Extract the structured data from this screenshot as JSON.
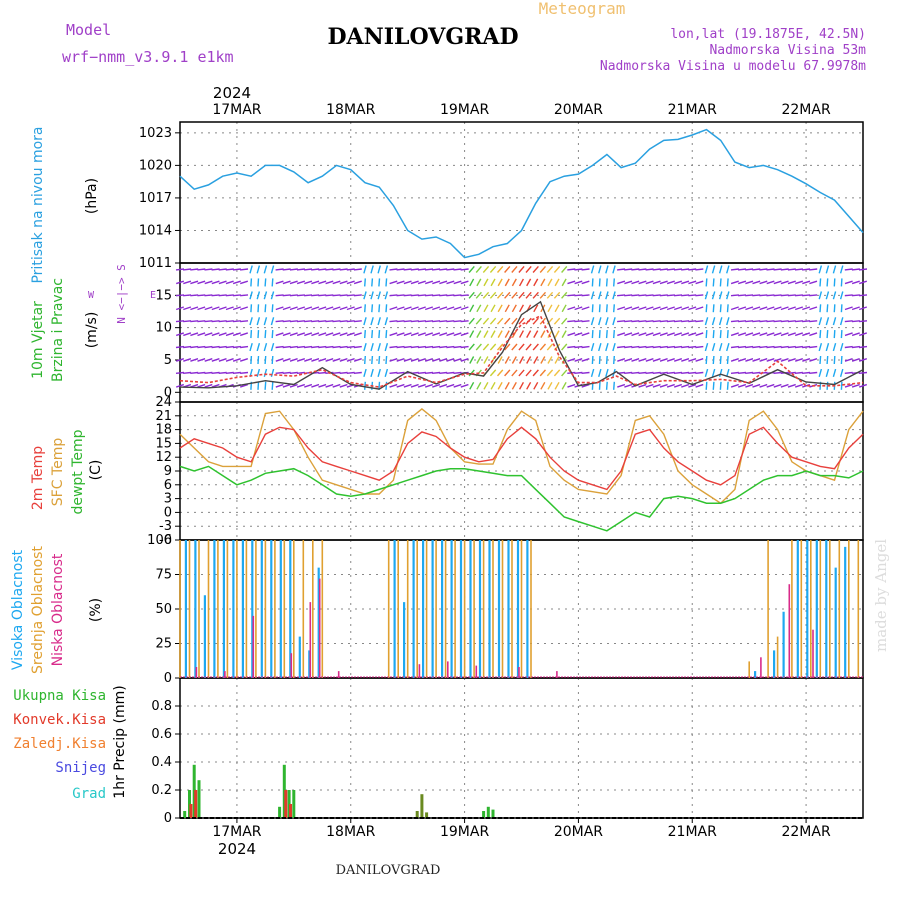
{
  "header": {
    "model_label": "Model",
    "model_name": "wrf−nmm_v3.9.1 e1km",
    "title": "DANILOVGRAD",
    "meteogram_label": "Meteogram",
    "lonlat": "lon,lat (19.1875E, 42.5N)",
    "elevation": "Nadmorska Visina 53m",
    "model_elevation": "Nadmorska Visina u modelu 67.9978m",
    "year": "2024",
    "footer_title": "DANILOVGRAD",
    "watermark": "made by Angel"
  },
  "colors": {
    "pressure": "#2aa0e0",
    "temp2m": "#e8403c",
    "sfc_temp": "#dba13a",
    "dewpoint": "#2fc22f",
    "high_cloud": "#1ea8f0",
    "mid_cloud": "#e0a030",
    "low_cloud": "#d82a8a",
    "precip_total": "#2fb52f",
    "precip_conv": "#e23a2a",
    "precip_frozen": "#f08030",
    "snow": "#4a4ae0",
    "grad": "#28c8c8",
    "wind_main": "#8a2ad2",
    "wind_speed": "#444444",
    "gust": "#e8403c"
  },
  "chart_data": [
    {
      "type": "line",
      "panel": "pressure",
      "ylabel_parts": [
        "Pritisak na nivou mora"
      ],
      "unit": "(hPa)",
      "ylim": [
        1011,
        1024
      ],
      "yticks": [
        1011,
        1014,
        1017,
        1020,
        1023
      ],
      "xlim": [
        0,
        144
      ],
      "dates": [
        "17MAR",
        "18MAR",
        "19MAR",
        "20MAR",
        "21MAR",
        "22MAR"
      ],
      "date_hours": [
        12,
        36,
        60,
        84,
        108,
        132
      ],
      "series": [
        {
          "x": [
            0,
            3,
            6,
            9,
            12,
            15,
            18,
            21,
            24,
            27,
            30,
            33,
            36,
            39,
            42,
            45,
            48,
            51,
            54,
            57,
            60,
            63,
            66,
            69,
            72,
            75,
            78,
            81,
            84,
            87,
            90,
            93,
            96,
            99,
            102,
            105,
            108,
            111,
            114,
            117,
            120,
            123,
            126,
            129,
            132,
            135,
            138,
            141,
            144
          ],
          "y": [
            1019.0,
            1017.8,
            1018.2,
            1019.0,
            1019.3,
            1019.0,
            1020.0,
            1020.0,
            1019.4,
            1018.4,
            1019.0,
            1020.0,
            1019.6,
            1018.4,
            1018.0,
            1016.3,
            1014.0,
            1013.2,
            1013.4,
            1012.8,
            1011.5,
            1011.8,
            1012.5,
            1012.8,
            1014.0,
            1016.5,
            1018.5,
            1019.0,
            1019.2,
            1020.0,
            1021.0,
            1019.8,
            1020.2,
            1021.5,
            1022.3,
            1022.4,
            1022.8,
            1023.3,
            1022.3,
            1020.3,
            1019.8,
            1020.0,
            1019.6,
            1019.0,
            1018.3,
            1017.5,
            1016.8,
            1015.3,
            1013.8
          ]
        }
      ]
    },
    {
      "type": "line",
      "panel": "wind",
      "ylabel_parts": [
        "10m Vjetar",
        "Brzina i Pravac"
      ],
      "unit": "(m/s)",
      "compass": "N <−|−> S",
      "compass_we": [
        "W",
        "E"
      ],
      "ylim": [
        -1.5,
        20
      ],
      "yticks": [
        0,
        5,
        10,
        15
      ],
      "xlim": [
        0,
        144
      ],
      "series": [
        {
          "name": "speed",
          "x": [
            0,
            6,
            12,
            18,
            24,
            30,
            36,
            42,
            48,
            54,
            60,
            64,
            68,
            72,
            76,
            80,
            84,
            88,
            92,
            96,
            102,
            108,
            114,
            120,
            126,
            132,
            138,
            144
          ],
          "y": [
            0.8,
            0.7,
            1.0,
            1.8,
            1.2,
            3.8,
            1.2,
            0.5,
            3.2,
            1.3,
            3.0,
            2.5,
            6.2,
            12.0,
            14.0,
            6.5,
            1.0,
            1.5,
            3.2,
            1.0,
            2.8,
            1.2,
            2.8,
            1.4,
            3.5,
            1.6,
            1.2,
            3.5
          ]
        },
        {
          "name": "gust",
          "x": [
            0,
            6,
            12,
            18,
            24,
            30,
            36,
            42,
            48,
            54,
            60,
            64,
            68,
            72,
            76,
            80,
            84,
            88,
            92,
            96,
            102,
            108,
            114,
            120,
            126,
            132,
            138,
            144
          ],
          "y": [
            1.8,
            1.5,
            2.3,
            2.8,
            2.5,
            3.5,
            1.5,
            0.8,
            2.5,
            1.5,
            2.8,
            3.0,
            7.0,
            10.5,
            11.8,
            5.5,
            1.5,
            1.5,
            2.5,
            1.2,
            1.8,
            1.8,
            2.0,
            1.5,
            4.8,
            1.0,
            1.0,
            1.5
          ]
        }
      ]
    },
    {
      "type": "line",
      "panel": "temperature",
      "ylabel_parts": [
        "2m Temp",
        "SFC Temp",
        "dewpt Temp"
      ],
      "unit": "(C)",
      "ylim": [
        -6,
        24
      ],
      "yticks": [
        -6,
        -3,
        0,
        3,
        6,
        9,
        12,
        15,
        18,
        21,
        24
      ],
      "xlim": [
        0,
        144
      ],
      "series": [
        {
          "name": "2m Temp",
          "x": [
            0,
            3,
            6,
            9,
            12,
            15,
            18,
            21,
            24,
            27,
            30,
            33,
            36,
            39,
            42,
            45,
            48,
            51,
            54,
            57,
            60,
            63,
            66,
            69,
            72,
            75,
            78,
            81,
            84,
            87,
            90,
            93,
            96,
            99,
            102,
            105,
            108,
            111,
            114,
            117,
            120,
            123,
            126,
            129,
            132,
            135,
            138,
            141,
            144
          ],
          "y": [
            14,
            16,
            15,
            14,
            12,
            11,
            17,
            18.5,
            18,
            14,
            11,
            10,
            9,
            8,
            7,
            9,
            15,
            17.5,
            16.5,
            14,
            12,
            11,
            11.5,
            16,
            18.5,
            16,
            12,
            9,
            7,
            6,
            5,
            9,
            17,
            18,
            14,
            11,
            9,
            7,
            6,
            8,
            17,
            18.5,
            15,
            12,
            11,
            10,
            9.5,
            14,
            17
          ]
        },
        {
          "name": "SFC Temp",
          "x": [
            0,
            3,
            6,
            9,
            12,
            15,
            18,
            21,
            24,
            27,
            30,
            33,
            36,
            39,
            42,
            45,
            48,
            51,
            54,
            57,
            60,
            63,
            66,
            69,
            72,
            75,
            78,
            81,
            84,
            87,
            90,
            93,
            96,
            99,
            102,
            105,
            108,
            111,
            114,
            117,
            120,
            123,
            126,
            129,
            132,
            135,
            138,
            141,
            144
          ],
          "y": [
            17,
            14,
            11,
            10,
            10,
            10,
            21.5,
            22,
            18,
            12,
            7,
            6,
            5,
            4,
            4,
            7,
            20,
            22.5,
            20,
            14,
            11,
            10.5,
            10.5,
            18,
            22,
            20,
            10,
            7,
            5,
            4.5,
            4,
            8,
            20,
            21,
            17,
            9,
            6,
            4,
            2,
            5,
            20,
            22,
            18,
            11,
            9,
            8,
            7,
            18,
            22
          ]
        },
        {
          "name": "dewpt Temp",
          "x": [
            0,
            3,
            6,
            9,
            12,
            15,
            18,
            21,
            24,
            27,
            30,
            33,
            36,
            39,
            42,
            45,
            48,
            51,
            54,
            57,
            60,
            63,
            66,
            69,
            72,
            75,
            78,
            81,
            84,
            87,
            90,
            93,
            96,
            99,
            102,
            105,
            108,
            111,
            114,
            117,
            120,
            123,
            126,
            129,
            132,
            135,
            138,
            141,
            144
          ],
          "y": [
            10,
            9,
            10,
            8,
            6,
            7,
            8.5,
            9,
            9.5,
            8,
            6,
            4,
            3.5,
            4,
            5,
            6,
            7,
            8,
            9,
            9.5,
            9.5,
            9,
            8.5,
            8,
            8,
            5,
            2,
            -1,
            -2,
            -3,
            -4,
            -2,
            0,
            -1,
            3,
            3.5,
            3,
            2,
            2,
            3,
            5,
            7,
            8,
            8,
            9,
            8,
            8,
            7.5,
            9
          ]
        }
      ]
    },
    {
      "type": "bar",
      "panel": "clouds",
      "ylabel_parts": [
        "Visoka Oblacnost",
        "Srednja Oblacnost",
        "Niska Oblacnost"
      ],
      "unit": "(%)",
      "ylim": [
        0,
        100
      ],
      "yticks": [
        0,
        25,
        50,
        75,
        100
      ],
      "xlim": [
        0,
        144
      ],
      "series": [
        {
          "name": "Visoka Oblacnost",
          "x": [
            1,
            3,
            5,
            7,
            9,
            11,
            13,
            15,
            17,
            19,
            21,
            23,
            25,
            27,
            29,
            45,
            47,
            49,
            51,
            53,
            55,
            57,
            59,
            61,
            63,
            65,
            67,
            69,
            71,
            73,
            121,
            125,
            127,
            130,
            132,
            134,
            136,
            138,
            140
          ],
          "values": [
            100,
            100,
            60,
            100,
            100,
            100,
            100,
            100,
            100,
            100,
            100,
            100,
            30,
            20,
            80,
            100,
            55,
            100,
            100,
            100,
            100,
            100,
            100,
            100,
            100,
            100,
            100,
            100,
            100,
            100,
            5,
            20,
            48,
            100,
            100,
            100,
            100,
            80,
            95
          ]
        },
        {
          "name": "Srednja Oblacnost",
          "x": [
            0,
            2,
            4,
            6,
            8,
            10,
            12,
            14,
            16,
            18,
            20,
            22,
            24,
            26,
            28,
            30,
            44,
            46,
            48,
            50,
            52,
            54,
            56,
            58,
            60,
            62,
            64,
            66,
            68,
            70,
            72,
            74,
            120,
            124,
            126,
            129,
            131,
            133,
            135,
            137,
            139,
            141,
            143
          ],
          "values": [
            100,
            100,
            100,
            100,
            100,
            100,
            100,
            100,
            100,
            100,
            100,
            100,
            100,
            100,
            100,
            100,
            100,
            100,
            100,
            100,
            100,
            100,
            100,
            100,
            100,
            100,
            100,
            100,
            100,
            100,
            100,
            100,
            12,
            100,
            30,
            100,
            100,
            100,
            100,
            100,
            100,
            100,
            100
          ]
        },
        {
          "name": "Niska Oblacnost",
          "x": [
            3,
            9,
            15,
            23,
            27,
            29,
            33,
            50,
            56,
            62,
            71,
            79,
            122,
            128,
            133
          ],
          "values": [
            8,
            5,
            45,
            18,
            55,
            72,
            5,
            10,
            12,
            9,
            8,
            5,
            15,
            68,
            35
          ]
        }
      ]
    },
    {
      "type": "bar",
      "panel": "precipitation",
      "ylabel_parts": [
        "1hr Precip (mm)"
      ],
      "legend": [
        "Ukupna Kisa",
        "Konvek.Kisa",
        "Zaledj.Kisa",
        "Snijeg",
        "Grad"
      ],
      "ylim": [
        0,
        1.0
      ],
      "yticks": [
        0,
        0.2,
        0.4,
        0.6,
        0.8
      ],
      "xlim": [
        0,
        144
      ],
      "series": [
        {
          "name": "Ukupna Kisa",
          "x": [
            1,
            2,
            3,
            4,
            21,
            22,
            23,
            24,
            50,
            51,
            52,
            64,
            65,
            66
          ],
          "values": [
            0.05,
            0.2,
            0.38,
            0.27,
            0.08,
            0.38,
            0.2,
            0.2,
            0.05,
            0.17,
            0.04,
            0.05,
            0.08,
            0.06
          ]
        },
        {
          "name": "Konvek.Kisa",
          "x": [
            2.3,
            3.3,
            22.3,
            23.3
          ],
          "values": [
            0.1,
            0.2,
            0.2,
            0.1
          ]
        }
      ]
    }
  ]
}
